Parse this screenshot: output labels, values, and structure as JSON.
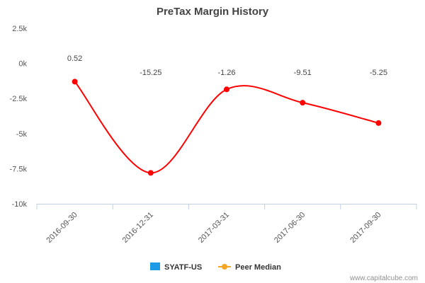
{
  "chart_data": {
    "type": "line",
    "title": "PreTax Margin History",
    "categories": [
      "2016-09-30",
      "2016-12-31",
      "2017-03-31",
      "2017-06-30",
      "2017-09-30"
    ],
    "y_ticks": [
      "2.5k",
      "0k",
      "-2.5k",
      "-5k",
      "-7.5k",
      "-10k"
    ],
    "y_tick_values": [
      2500,
      0,
      -2500,
      -5000,
      -7500,
      -10000
    ],
    "ylim": [
      -10000,
      2500
    ],
    "series": [
      {
        "name": "Peer Median",
        "values": [
          -1300,
          -7800,
          -1850,
          -2800,
          -4250
        ],
        "data_labels": [
          "0.52",
          "-15.25",
          "-1.26",
          "-9.51",
          "-5.25"
        ],
        "color": "#ff0000"
      }
    ],
    "legend": [
      {
        "label": "SYATF-US",
        "color": "#1e9ae6",
        "symbol": "square"
      },
      {
        "label": "Peer Median",
        "color": "#f5a623",
        "symbol": "line-dot"
      }
    ],
    "legend_position": "bottom-center",
    "grid": false
  },
  "credit": "www.capitalcube.com"
}
